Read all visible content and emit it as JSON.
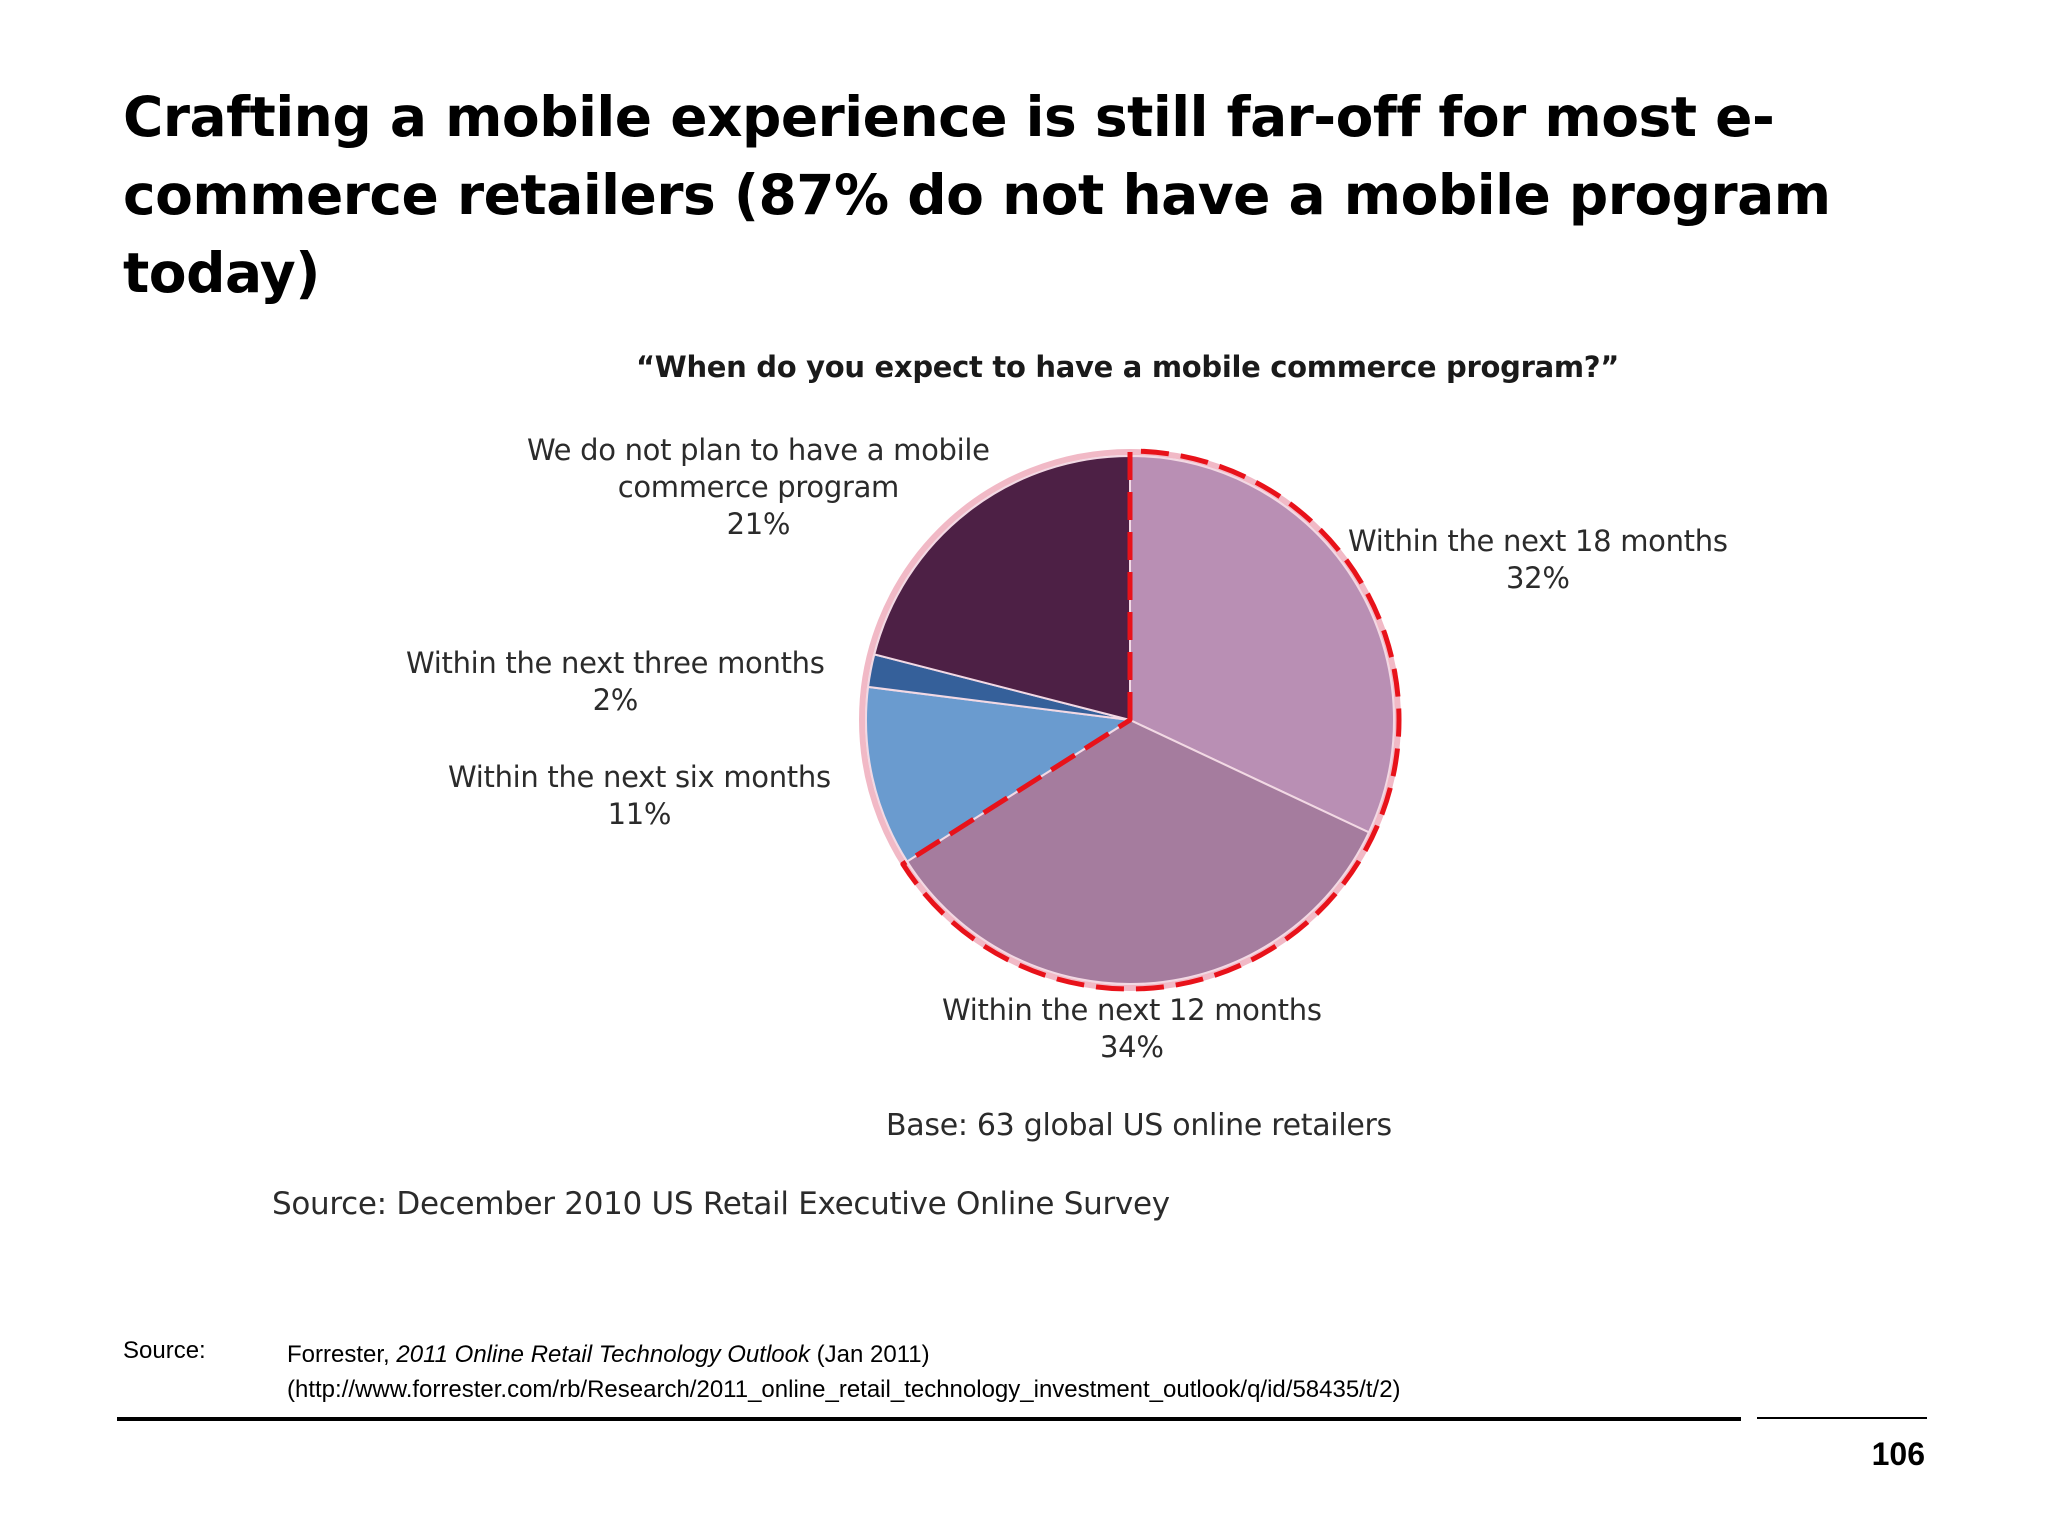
{
  "slide": {
    "title": "Crafting a mobile experience is still far-off for most e-commerce retailers (87% do not have a mobile program today)"
  },
  "chart_data": {
    "type": "pie",
    "title": "“When do you expect to have a mobile commerce program?”",
    "slices": [
      {
        "label_lines": [
          "Within the next 18 months",
          "32%"
        ],
        "value": 32,
        "color": "#b98fb4"
      },
      {
        "label_lines": [
          "Within the next 12 months",
          "34%"
        ],
        "value": 34,
        "color": "#a57c9e"
      },
      {
        "label_lines": [
          "Within the next six months",
          "11%"
        ],
        "value": 11,
        "color": "#6a9bcf"
      },
      {
        "label_lines": [
          "Within the next three months",
          "2%"
        ],
        "value": 2,
        "color": "#35609a"
      },
      {
        "label_lines": [
          "We do not plan to have a mobile",
          "commerce program",
          "21%"
        ],
        "value": 21,
        "color": "#4d2045"
      }
    ],
    "highlight": {
      "style": "red dashed outline",
      "color": "#e8121a",
      "slices": [
        "Within the next 18 months",
        "Within the next 12 months"
      ]
    },
    "base_note": "Base: 63 global US online retailers",
    "survey_source": "Source: December 2010 US Retail Executive Online Survey"
  },
  "footer": {
    "source_label": "Source:",
    "source_publisher": "Forrester,",
    "source_title": "2011 Online Retail Technology Outlook",
    "source_date": "(Jan 2011)",
    "source_url": "(http://www.forrester.com/rb/Research/2011_online_retail_technology_investment_outlook/q/id/58435/t/2)",
    "page_number": "106"
  }
}
